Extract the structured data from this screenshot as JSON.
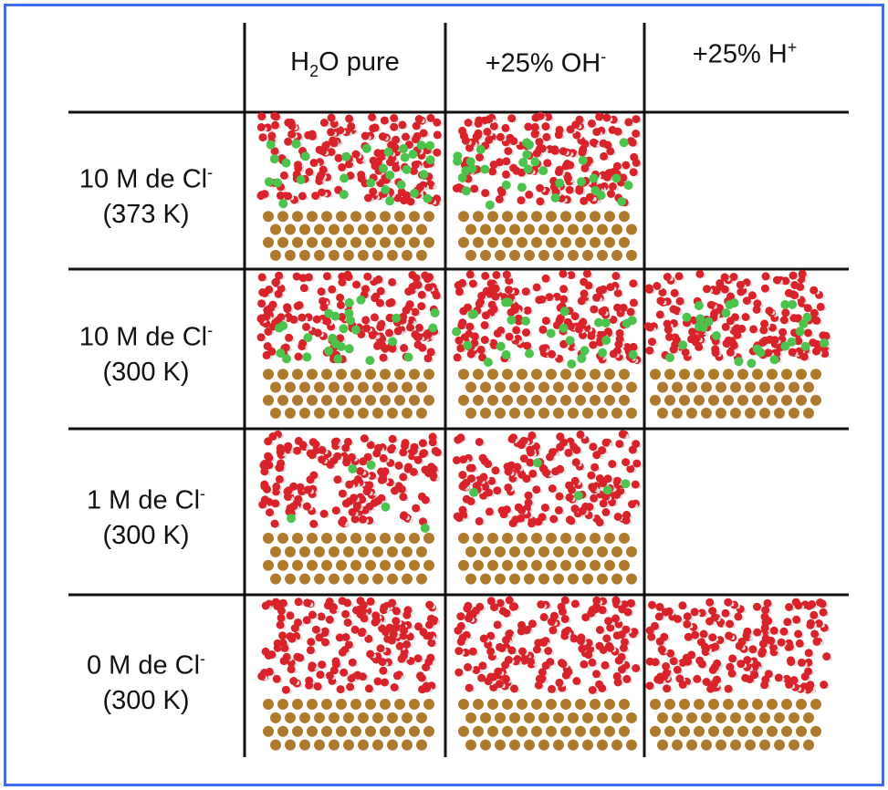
{
  "table": {
    "columns": [
      [
        {
          "text": "H"
        },
        {
          "sub": "2"
        },
        {
          "text": "O pure"
        }
      ],
      [
        {
          "text": "+25% OH"
        },
        {
          "sup": "-"
        }
      ],
      [
        {
          "text": "+25% H"
        },
        {
          "sup": "+"
        }
      ]
    ],
    "rows": [
      {
        "label": [
          {
            "text": "10 M de Cl"
          },
          {
            "sup": "-"
          }
        ],
        "condition": "(373 K)"
      },
      {
        "label": [
          {
            "text": "10 M de Cl"
          },
          {
            "sup": "-"
          }
        ],
        "condition": "(300 K)"
      },
      {
        "label": [
          {
            "text": "1 M de Cl"
          },
          {
            "sup": "-"
          }
        ],
        "condition": "(300 K)"
      },
      {
        "label": [
          {
            "text": "0 M de Cl"
          },
          {
            "sup": "-"
          }
        ],
        "condition": "(300 K)"
      }
    ]
  }
}
